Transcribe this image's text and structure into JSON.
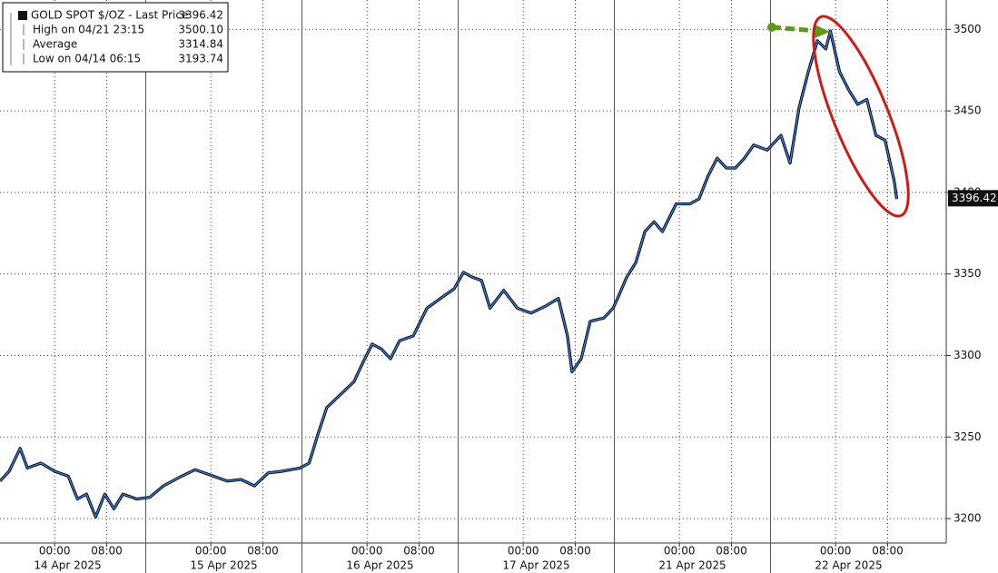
{
  "chart_data": {
    "type": "line",
    "x": [
      -8.4,
      -7.0,
      -5.3,
      -4.2,
      -2.1,
      0,
      2.1,
      3.5,
      4.9,
      6.3,
      7.7,
      9.1,
      10.5,
      12.6,
      14.6,
      16.7,
      19.5,
      21.6,
      24.4,
      26.5,
      28.6,
      30.7,
      32.8,
      34.9,
      37.7,
      39.1,
      40.4,
      41.8,
      43.9,
      46.0,
      47.4,
      48.8,
      50.2,
      51.6,
      53.0,
      55.1,
      57.2,
      59.3,
      61.4,
      62.8,
      64.2,
      65.6,
      66.9,
      69.0,
      71.1,
      73.2,
      75.3,
      77.4,
      78.8,
      79.5,
      80.9,
      82.3,
      84.4,
      85.8,
      86.5,
      87.9,
      89.3,
      90.7,
      92.1,
      93.4,
      95.5,
      97.6,
      99.0,
      100.4,
      101.8,
      103.2,
      104.6,
      106.0,
      107.4,
      109.5,
      111.6,
      113.0,
      114.4,
      115.8,
      117.2,
      118.5,
      119.2,
      120.6,
      122.0,
      123.4,
      124.8,
      126.2,
      127.6,
      129.0,
      129.4
    ],
    "series": [
      {
        "name": "GOLD SPOT $/OZ - Last Price",
        "color": "#3b7dd8",
        "values": [
          3223,
          3229,
          3243,
          3231,
          3234,
          3229,
          3226,
          3212,
          3215,
          3201,
          3215,
          3206,
          3215,
          3212,
          3213,
          3220,
          3226,
          3230,
          3226,
          3223,
          3224,
          3220,
          3228,
          3229,
          3231,
          3234,
          3251,
          3268,
          3276,
          3284,
          3296,
          3307,
          3304,
          3298,
          3309,
          3312,
          3329,
          3335,
          3341,
          3351,
          3348,
          3346,
          3329,
          3340,
          3329,
          3326,
          3330,
          3335,
          3312,
          3290,
          3298,
          3321,
          3323,
          3329,
          3335,
          3348,
          3357,
          3376,
          3382,
          3376,
          3393,
          3393,
          3396,
          3410,
          3421,
          3415,
          3415,
          3421,
          3429,
          3426,
          3435,
          3418,
          3452,
          3474,
          3493,
          3488,
          3499,
          3474,
          3463,
          3454,
          3457,
          3435,
          3432,
          3407,
          3396
        ]
      }
    ],
    "xlim": [
      -8.4,
      137
    ],
    "xticks": [
      {
        "value": 0,
        "label": "00:00"
      },
      {
        "value": 8,
        "label": "08:00"
      },
      {
        "value": 24,
        "label": "00:00"
      },
      {
        "value": 32,
        "label": "08:00"
      },
      {
        "value": 48,
        "label": "00:00"
      },
      {
        "value": 56,
        "label": "08:00"
      },
      {
        "value": 72,
        "label": "00:00"
      },
      {
        "value": 80,
        "label": "08:00"
      },
      {
        "value": 96,
        "label": "00:00"
      },
      {
        "value": 104,
        "label": "08:00"
      },
      {
        "value": 120,
        "label": "00:00"
      },
      {
        "value": 128,
        "label": "08:00"
      }
    ],
    "date_labels": [
      {
        "value": 2,
        "label": "14 Apr 2025"
      },
      {
        "value": 26,
        "label": "15 Apr 2025"
      },
      {
        "value": 50,
        "label": "16 Apr 2025"
      },
      {
        "value": 74,
        "label": "17 Apr 2025"
      },
      {
        "value": 98,
        "label": "21 Apr 2025"
      },
      {
        "value": 122,
        "label": "22 Apr 2025"
      }
    ],
    "ylim": [
      3185,
      3518
    ],
    "yticks": [
      3200,
      3250,
      3300,
      3350,
      3400,
      3450,
      3500
    ],
    "grid": true,
    "last_price": {
      "value": 3396.42,
      "label": "3396.42"
    },
    "legend": [
      {
        "name": "GOLD SPOT $/OZ - Last Price",
        "value": "3396.42"
      },
      {
        "name": "High on 04/21 23:15",
        "value": "3500.10"
      },
      {
        "name": "Average",
        "value": "3314.84"
      },
      {
        "name": "Low on 04/14 06:15",
        "value": "3193.74"
      }
    ]
  }
}
